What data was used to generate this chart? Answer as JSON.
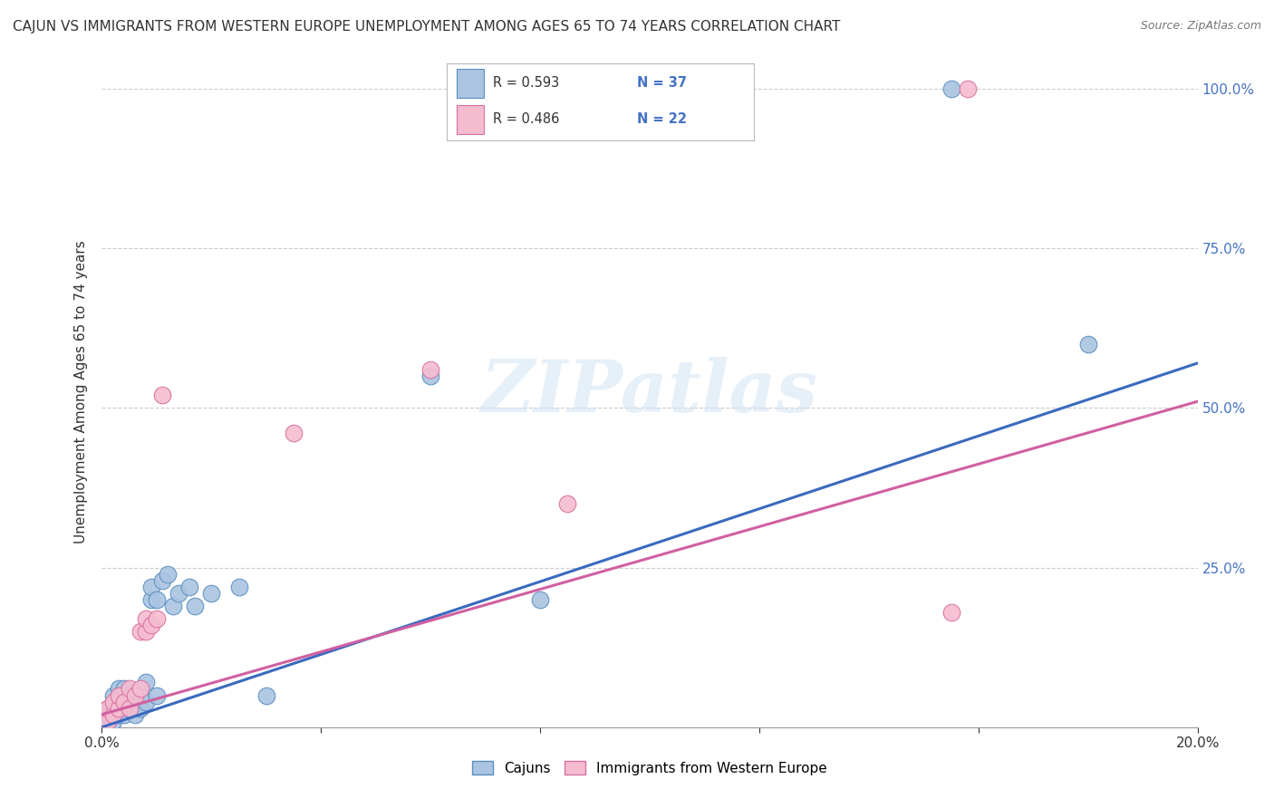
{
  "title": "CAJUN VS IMMIGRANTS FROM WESTERN EUROPE UNEMPLOYMENT AMONG AGES 65 TO 74 YEARS CORRELATION CHART",
  "source": "Source: ZipAtlas.com",
  "ylabel": "Unemployment Among Ages 65 to 74 years",
  "watermark": "ZIPatlas",
  "x_min": 0.0,
  "x_max": 0.2,
  "y_min": 0.0,
  "y_max": 1.05,
  "cajun_color": "#aac4e2",
  "cajun_edge_color": "#5a8fc0",
  "cajun_line_color": "#3a6abf",
  "western_color": "#f5bcd0",
  "western_edge_color": "#d870a0",
  "western_line_color": "#d060a0",
  "label1": "Cajuns",
  "label2": "Immigrants from Western Europe",
  "legend_R1": "0.593",
  "legend_N1": "37",
  "legend_R2": "0.486",
  "legend_N2": "22",
  "background_color": "#ffffff",
  "grid_color": "#cccccc",
  "cajun_x": [
    0.001,
    0.001,
    0.001,
    0.002,
    0.002,
    0.002,
    0.003,
    0.003,
    0.003,
    0.004,
    0.004,
    0.004,
    0.005,
    0.005,
    0.006,
    0.006,
    0.007,
    0.007,
    0.008,
    0.008,
    0.009,
    0.009,
    0.01,
    0.01,
    0.011,
    0.012,
    0.013,
    0.014,
    0.016,
    0.017,
    0.02,
    0.025,
    0.03,
    0.06,
    0.08,
    0.155,
    0.18
  ],
  "cajun_y": [
    0.01,
    0.02,
    0.03,
    0.01,
    0.03,
    0.05,
    0.02,
    0.04,
    0.06,
    0.02,
    0.04,
    0.06,
    0.03,
    0.05,
    0.02,
    0.04,
    0.03,
    0.05,
    0.04,
    0.07,
    0.2,
    0.22,
    0.05,
    0.2,
    0.23,
    0.24,
    0.19,
    0.21,
    0.22,
    0.19,
    0.21,
    0.22,
    0.05,
    0.55,
    0.2,
    1.0,
    0.6
  ],
  "western_x": [
    0.001,
    0.001,
    0.002,
    0.002,
    0.003,
    0.003,
    0.004,
    0.005,
    0.005,
    0.006,
    0.007,
    0.007,
    0.008,
    0.008,
    0.009,
    0.01,
    0.011,
    0.035,
    0.06,
    0.085,
    0.155,
    0.158
  ],
  "western_y": [
    0.01,
    0.03,
    0.02,
    0.04,
    0.03,
    0.05,
    0.04,
    0.03,
    0.06,
    0.05,
    0.06,
    0.15,
    0.15,
    0.17,
    0.16,
    0.17,
    0.52,
    0.46,
    0.56,
    0.35,
    0.18,
    1.0
  ]
}
